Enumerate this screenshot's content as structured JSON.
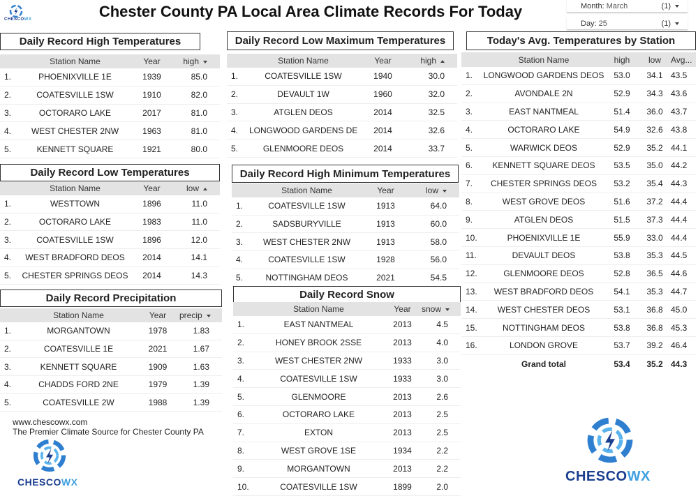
{
  "header": {
    "title": "Chester County PA Local Area Climate Records For Today",
    "filters": [
      {
        "label": "Month:",
        "value": "March",
        "count": "(1)"
      },
      {
        "label": "Day:",
        "value": "25",
        "count": "(1)"
      }
    ]
  },
  "logo": {
    "part1": "CHESCO",
    "part2": "WX"
  },
  "tables": [
    {
      "title": "Daily Record High Temperatures",
      "columns": [
        "Station Name",
        "Year",
        "high"
      ],
      "sort": {
        "column": 2,
        "direction": "desc"
      },
      "rows": [
        [
          "1.",
          "PHOENIXVILLE 1E",
          "1939",
          "85.0"
        ],
        [
          "2.",
          "COATESVILLE 1SW",
          "1910",
          "82.0"
        ],
        [
          "3.",
          "OCTORARO LAKE",
          "2017",
          "81.0"
        ],
        [
          "4.",
          "WEST CHESTER 2NW",
          "1963",
          "81.0"
        ],
        [
          "5.",
          "KENNETT SQUARE",
          "1921",
          "80.0"
        ]
      ]
    },
    {
      "title": "Daily Record Low Maximum Temperatures",
      "columns": [
        "Station Name",
        "Year",
        "high"
      ],
      "sort": {
        "column": 2,
        "direction": "asc"
      },
      "rows": [
        [
          "1.",
          "COATESVILLE 1SW",
          "1940",
          "30.0"
        ],
        [
          "2.",
          "DEVAULT 1W",
          "1960",
          "32.0"
        ],
        [
          "3.",
          "ATGLEN DEOS",
          "2014",
          "32.5"
        ],
        [
          "4.",
          "LONGWOOD GARDENS DEOS",
          "2014",
          "32.6"
        ],
        [
          "5.",
          "GLENMOORE DEOS",
          "2014",
          "33.7"
        ]
      ]
    },
    {
      "title": "Today's Avg. Temperatures by Station",
      "columns": [
        "Station Name",
        "high",
        "low",
        "Avg..."
      ],
      "rows": [
        [
          "1.",
          "LONGWOOD GARDENS DEOS",
          "53.0",
          "34.1",
          "43.5"
        ],
        [
          "2.",
          "AVONDALE 2N",
          "52.9",
          "34.3",
          "43.6"
        ],
        [
          "3.",
          "EAST NANTMEAL",
          "51.4",
          "36.0",
          "43.7"
        ],
        [
          "4.",
          "OCTORARO LAKE",
          "54.9",
          "32.6",
          "43.8"
        ],
        [
          "5.",
          "WARWICK DEOS",
          "52.9",
          "35.2",
          "44.1"
        ],
        [
          "6.",
          "KENNETT SQUARE DEOS",
          "53.5",
          "35.0",
          "44.2"
        ],
        [
          "7.",
          "CHESTER SPRINGS DEOS",
          "53.2",
          "35.4",
          "44.3"
        ],
        [
          "8.",
          "WEST GROVE DEOS",
          "51.6",
          "37.2",
          "44.4"
        ],
        [
          "9.",
          "ATGLEN DEOS",
          "51.5",
          "37.3",
          "44.4"
        ],
        [
          "10.",
          "PHOENIXVILLE 1E",
          "55.9",
          "33.0",
          "44.4"
        ],
        [
          "11.",
          "DEVAULT DEOS",
          "53.8",
          "35.3",
          "44.5"
        ],
        [
          "12.",
          "GLENMOORE DEOS",
          "52.8",
          "36.5",
          "44.6"
        ],
        [
          "13.",
          "WEST BRADFORD DEOS",
          "54.1",
          "35.3",
          "44.7"
        ],
        [
          "14.",
          "WEST CHESTER DEOS",
          "53.1",
          "36.8",
          "45.0"
        ],
        [
          "15.",
          "NOTTINGHAM DEOS",
          "53.8",
          "36.8",
          "45.3"
        ],
        [
          "16.",
          "LONDON GROVE",
          "53.7",
          "39.2",
          "46.4"
        ]
      ],
      "grand_total": [
        "Grand total",
        "53.4",
        "35.2",
        "44.3"
      ]
    },
    {
      "title": "Daily Record Low Temperatures",
      "columns": [
        "Station Name",
        "Year",
        "low"
      ],
      "sort": {
        "column": 2,
        "direction": "asc"
      },
      "rows": [
        [
          "1.",
          "WESTTOWN",
          "1896",
          "11.0"
        ],
        [
          "2.",
          "OCTORARO LAKE",
          "1983",
          "11.0"
        ],
        [
          "3.",
          "COATESVILLE 1SW",
          "1896",
          "12.0"
        ],
        [
          "4.",
          "WEST BRADFORD DEOS",
          "2014",
          "14.1"
        ],
        [
          "5.",
          "CHESTER SPRINGS DEOS",
          "2014",
          "14.3"
        ]
      ]
    },
    {
      "title": "Daily Record High Minimum Temperatures",
      "columns": [
        "Station Name",
        "Year",
        "low"
      ],
      "sort": {
        "column": 2,
        "direction": "desc"
      },
      "rows": [
        [
          "1.",
          "COATESVILLE 1SW",
          "1913",
          "64.0"
        ],
        [
          "2.",
          "SADSBURYVILLE",
          "1913",
          "60.0"
        ],
        [
          "3.",
          "WEST CHESTER 2NW",
          "1913",
          "58.0"
        ],
        [
          "4.",
          "COATESVILLE 1SW",
          "1928",
          "56.0"
        ],
        [
          "5.",
          "NOTTINGHAM DEOS",
          "2021",
          "54.5"
        ]
      ]
    },
    {
      "title": "Daily Record Precipitation",
      "columns": [
        "Station Name",
        "Year",
        "precip"
      ],
      "sort": {
        "column": 2,
        "direction": "desc"
      },
      "rows": [
        [
          "1.",
          "MORGANTOWN",
          "1978",
          "1.83"
        ],
        [
          "2.",
          "COATESVILLE 1E",
          "2021",
          "1.67"
        ],
        [
          "3.",
          "KENNETT SQUARE",
          "1909",
          "1.63"
        ],
        [
          "4.",
          "CHADDS FORD 2NE",
          "1979",
          "1.39"
        ],
        [
          "5.",
          "COATESVILLE 2W",
          "1988",
          "1.39"
        ]
      ]
    },
    {
      "title": "Daily Record Snow",
      "columns": [
        "Station Name",
        "Year",
        "snow"
      ],
      "sort": {
        "column": 2,
        "direction": "desc"
      },
      "rows": [
        [
          "1.",
          "EAST NANTMEAL",
          "2013",
          "4.5"
        ],
        [
          "2.",
          "HONEY BROOK 2SSE",
          "2013",
          "4.0"
        ],
        [
          "3.",
          "WEST CHESTER 2NW",
          "1933",
          "3.0"
        ],
        [
          "4.",
          "COATESVILLE 1SW",
          "1933",
          "3.0"
        ],
        [
          "5.",
          "GLENMOORE",
          "2013",
          "2.6"
        ],
        [
          "6.",
          "OCTORARO LAKE",
          "2013",
          "2.5"
        ],
        [
          "7.",
          "EXTON",
          "2013",
          "2.5"
        ],
        [
          "8.",
          "WEST GROVE 1SE",
          "1934",
          "2.2"
        ],
        [
          "9.",
          "MORGANTOWN",
          "2013",
          "2.2"
        ],
        [
          "10.",
          "COATESVILLE 1SW",
          "1899",
          "2.0"
        ]
      ]
    }
  ],
  "footer": {
    "url": "www.chescowx.com",
    "tagline": "The Premier Climate Source for Chester County PA"
  }
}
